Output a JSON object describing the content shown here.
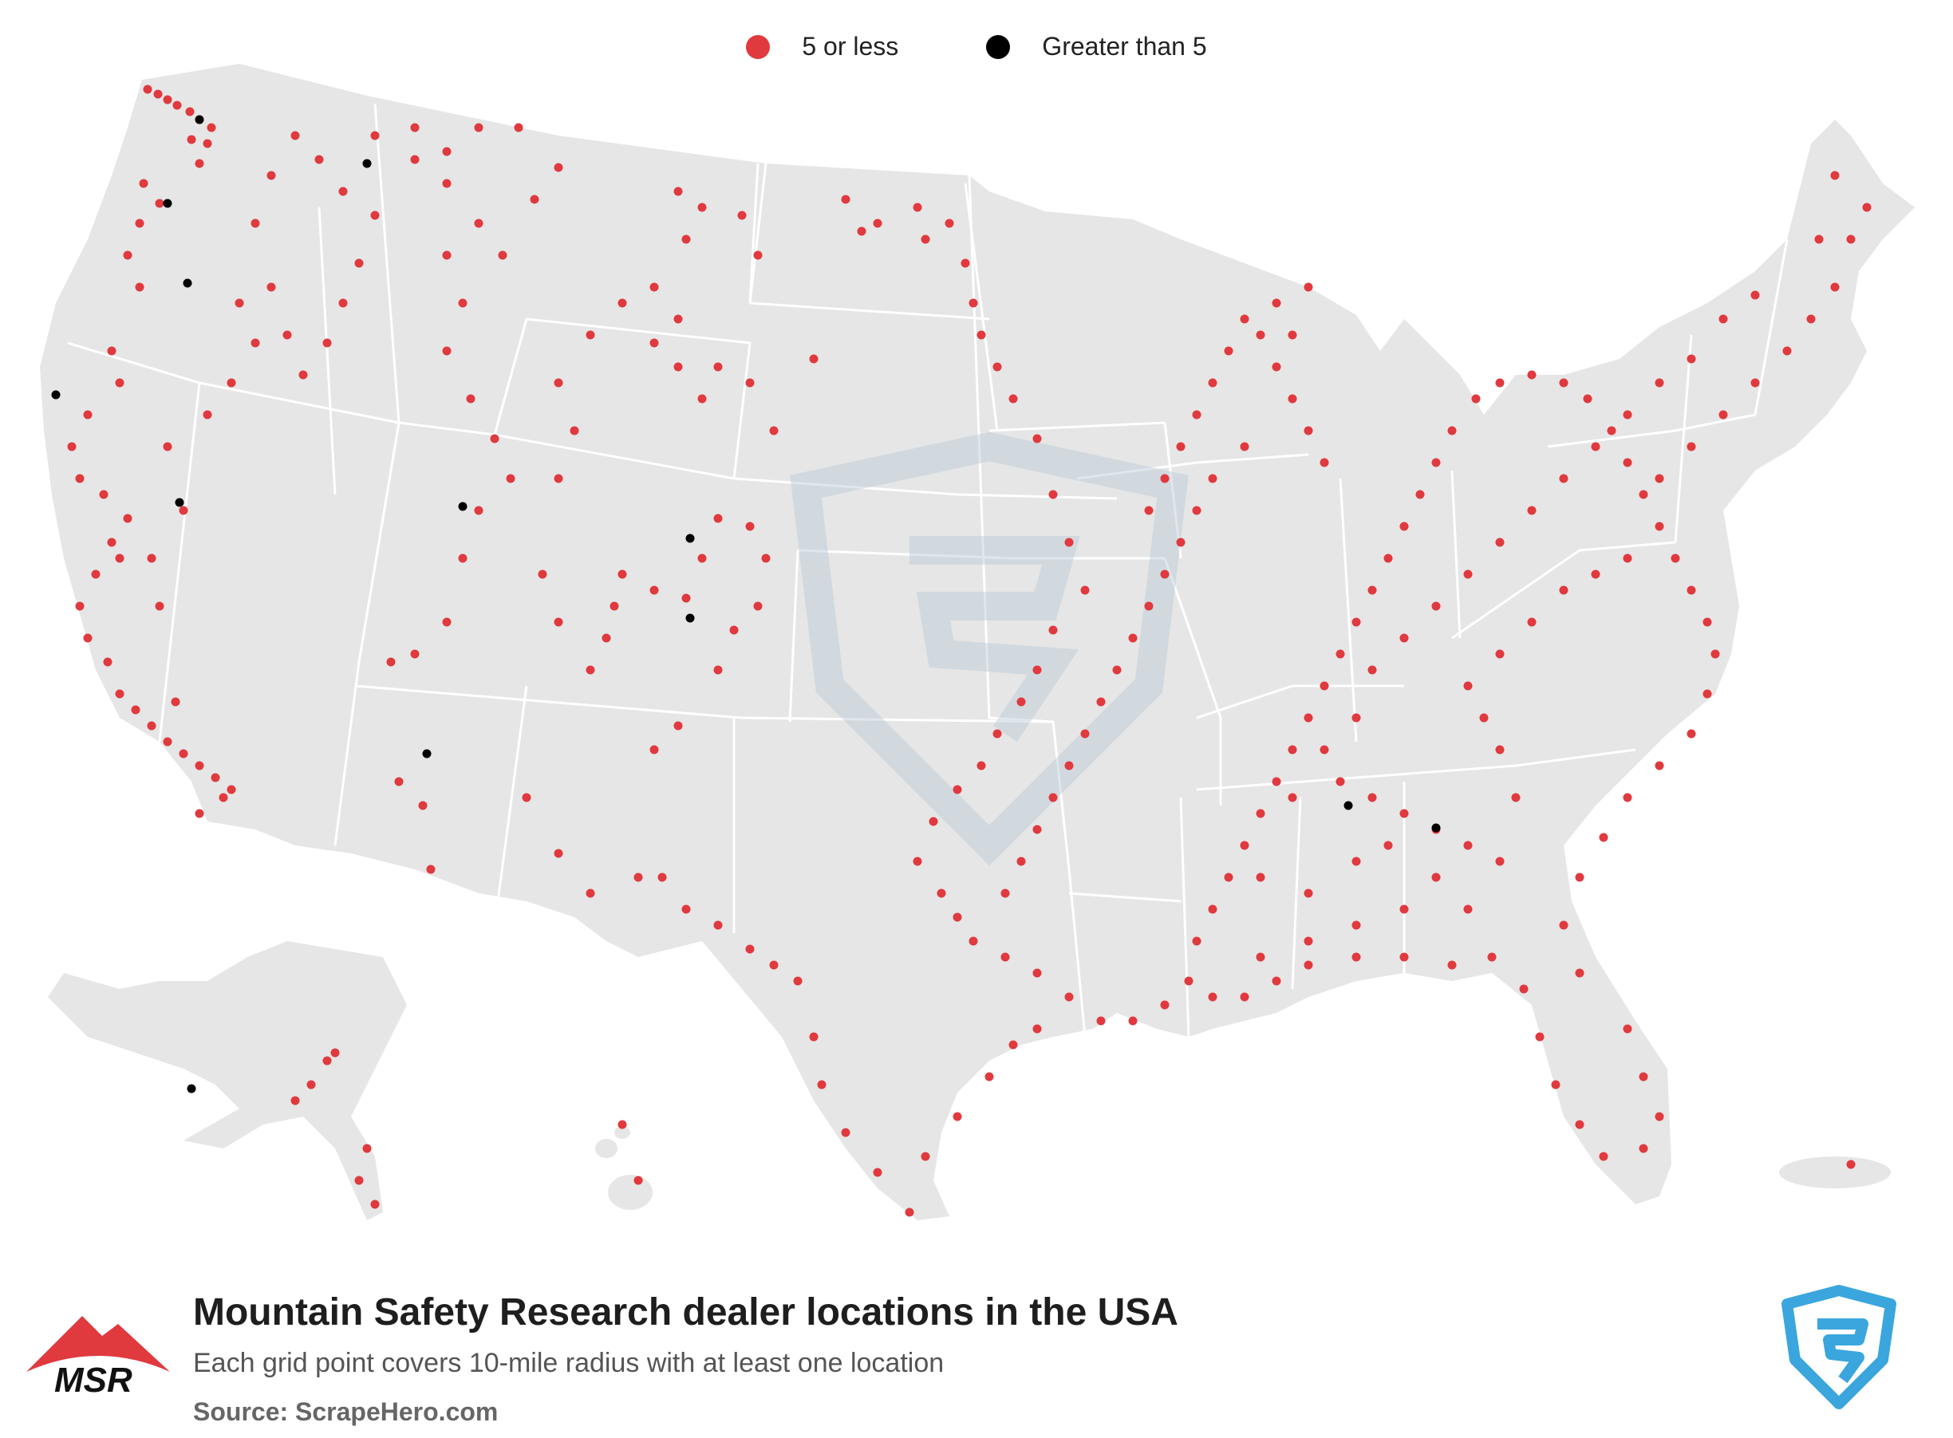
{
  "legend": {
    "items": [
      {
        "label": "5 or less",
        "color": "#e0393e"
      },
      {
        "label": "Greater than 5",
        "color": "#000000"
      }
    ]
  },
  "footer": {
    "title": "Mountain Safety Research dealer locations in the USA",
    "subtitle": "Each grid point covers 10-mile radius with at least one location",
    "source": "Source: ScrapeHero.com",
    "brand_logo_text": "MSR"
  },
  "colors": {
    "land": "#e6e6e6",
    "border": "#ffffff",
    "low": "#e0393e",
    "high": "#000000",
    "watermark": "#c9d6e2",
    "scrapehero_blue": "#3aa6dd"
  }
}
